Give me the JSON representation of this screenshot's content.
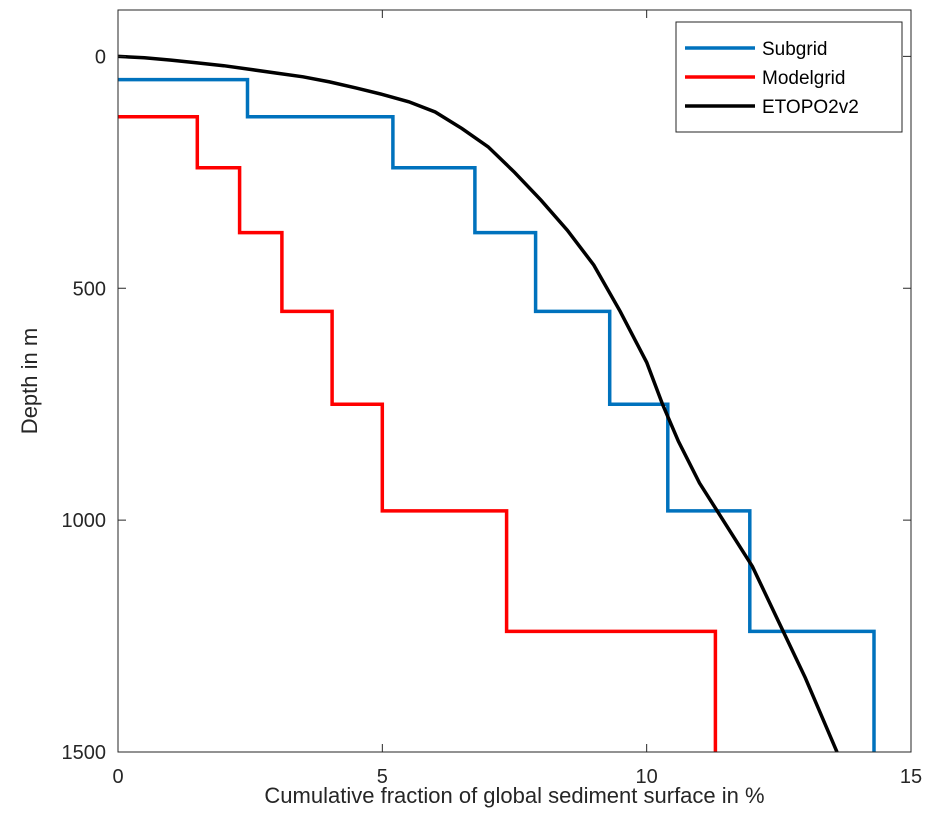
{
  "chart_data": {
    "type": "line",
    "xlabel": "Cumulative fraction of global sediment surface in %",
    "ylabel": "Depth in m",
    "xlim": [
      0,
      15
    ],
    "ylim": [
      -100,
      1500
    ],
    "y_reversed": true,
    "x_ticks": [
      "0",
      "5",
      "10",
      "15"
    ],
    "y_ticks": [
      "0",
      "500",
      "1000",
      "1500"
    ],
    "grid": false,
    "legend_position": "top-right",
    "series": [
      {
        "name": "Subgrid",
        "color": "#0072BD",
        "step": true,
        "points": [
          [
            0,
            50
          ],
          [
            2.45,
            50
          ],
          [
            2.45,
            130
          ],
          [
            5.2,
            130
          ],
          [
            5.2,
            240
          ],
          [
            6.75,
            240
          ],
          [
            6.75,
            380
          ],
          [
            7.9,
            380
          ],
          [
            7.9,
            550
          ],
          [
            9.3,
            550
          ],
          [
            9.3,
            750
          ],
          [
            10.4,
            750
          ],
          [
            10.4,
            980
          ],
          [
            11.95,
            980
          ],
          [
            11.95,
            1240
          ],
          [
            14.3,
            1240
          ],
          [
            14.3,
            1500
          ]
        ]
      },
      {
        "name": "Modelgrid",
        "color": "#FF0000",
        "step": true,
        "points": [
          [
            0,
            130
          ],
          [
            1.5,
            130
          ],
          [
            1.5,
            240
          ],
          [
            2.3,
            240
          ],
          [
            2.3,
            380
          ],
          [
            3.1,
            380
          ],
          [
            3.1,
            550
          ],
          [
            4.05,
            550
          ],
          [
            4.05,
            750
          ],
          [
            5.0,
            750
          ],
          [
            5.0,
            980
          ],
          [
            7.35,
            980
          ],
          [
            7.35,
            1240
          ],
          [
            11.3,
            1240
          ],
          [
            11.3,
            1500
          ]
        ]
      },
      {
        "name": "ETOPO2v2",
        "color": "#000000",
        "step": false,
        "points": [
          [
            0,
            0
          ],
          [
            0.5,
            3
          ],
          [
            1.0,
            8
          ],
          [
            1.5,
            14
          ],
          [
            2.0,
            20
          ],
          [
            2.5,
            28
          ],
          [
            3.0,
            36
          ],
          [
            3.5,
            44
          ],
          [
            4.0,
            55
          ],
          [
            4.5,
            68
          ],
          [
            5.0,
            82
          ],
          [
            5.5,
            98
          ],
          [
            6.0,
            120
          ],
          [
            6.5,
            155
          ],
          [
            7.0,
            195
          ],
          [
            7.5,
            250
          ],
          [
            8.0,
            310
          ],
          [
            8.5,
            375
          ],
          [
            9.0,
            450
          ],
          [
            9.5,
            550
          ],
          [
            10.0,
            660
          ],
          [
            10.3,
            750
          ],
          [
            10.6,
            830
          ],
          [
            11.0,
            920
          ],
          [
            11.5,
            1010
          ],
          [
            12.0,
            1100
          ],
          [
            12.5,
            1220
          ],
          [
            13.0,
            1340
          ],
          [
            13.6,
            1500
          ]
        ]
      }
    ]
  }
}
